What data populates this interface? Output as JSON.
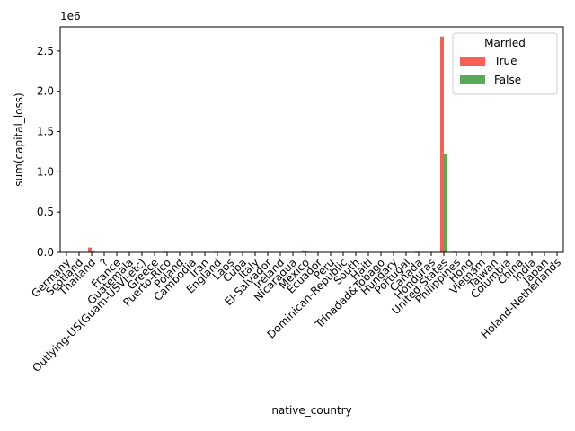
{
  "chart_data": {
    "type": "bar",
    "xlabel": "native_country",
    "ylabel": "sum(capital_loss)",
    "offset_label": "1e6",
    "ylim": [
      0,
      2800000
    ],
    "yticks": [
      0.0,
      0.5,
      1.0,
      1.5,
      2.0,
      2.5
    ],
    "ytick_labels": [
      "0.0",
      "0.5",
      "1.0",
      "1.5",
      "2.0",
      "2.5"
    ],
    "grid": false,
    "legend": {
      "title": "Married",
      "placement": "top-right"
    },
    "categories": [
      "Germany",
      "Scotland",
      "Thailand",
      "?",
      "France",
      "Guatemala",
      "Outlying-US(Guam-USVI-etc)",
      "Greece",
      "Puerto-Rico",
      "Poland",
      "Cambodia",
      "Iran",
      "England",
      "Laos",
      "Cuba",
      "Italy",
      "El-Salvador",
      "Ireland",
      "Nicaragua",
      "Mexico",
      "Ecuador",
      "Peru",
      "Dominican-Republic",
      "South",
      "Haiti",
      "Trinadad&Tobago",
      "Hungary",
      "Portugal",
      "Canada",
      "Honduras",
      "United-States",
      "Philippines",
      "Hong",
      "Vietnam",
      "Taiwan",
      "Columbia",
      "China",
      "India",
      "Japan",
      "Holand-Netherlands"
    ],
    "series": [
      {
        "name": "True",
        "color": "#f44336",
        "values": [
          6000,
          1000,
          60000,
          2000,
          1500,
          1000,
          0,
          3000,
          9000,
          3000,
          500,
          2000,
          8000,
          500,
          4000,
          2000,
          2000,
          3000,
          4000,
          25000,
          1000,
          1500,
          4000,
          4000,
          1000,
          500,
          500,
          4000,
          9000,
          500,
          2680000,
          9000,
          500,
          3000,
          2000,
          8000,
          6000,
          7000,
          3000,
          0
        ]
      },
      {
        "name": "False",
        "color": "#3c9a3c",
        "values": [
          2000,
          500,
          22000,
          500,
          1500,
          500,
          0,
          500,
          3000,
          1000,
          500,
          500,
          3000,
          500,
          2000,
          500,
          500,
          1000,
          2000,
          9000,
          1000,
          1000,
          1000,
          1500,
          500,
          500,
          500,
          1000,
          3000,
          500,
          1225000,
          3000,
          500,
          2000,
          1000,
          3000,
          1000,
          4000,
          1500,
          0
        ]
      }
    ]
  }
}
